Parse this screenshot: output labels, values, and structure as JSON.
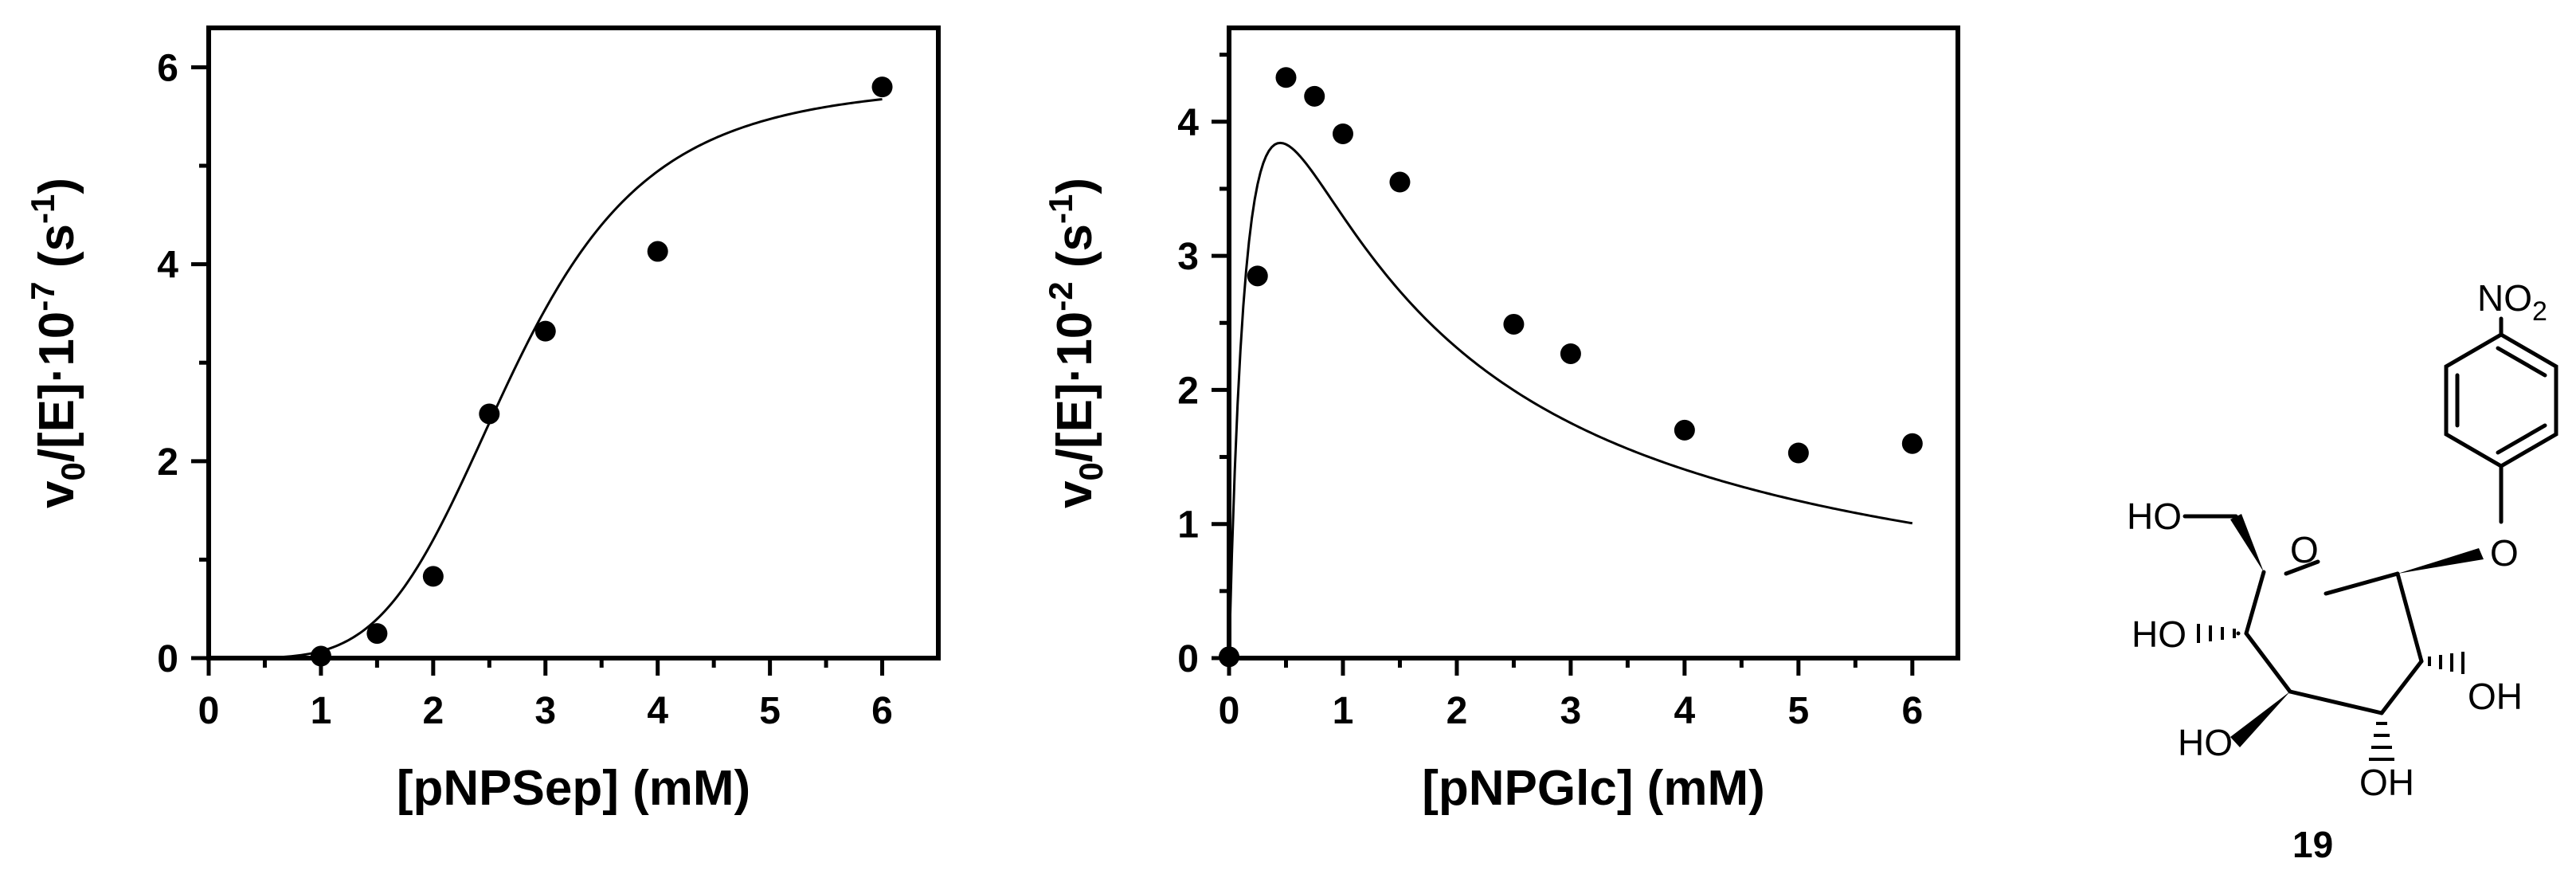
{
  "chart_data": [
    {
      "type": "scatter",
      "title": "",
      "xlabel_parts": {
        "text": "[pNPSep] (mM)"
      },
      "ylabel_parts": {
        "v": "v",
        "sub0": "0",
        "mid": "/[E]·10",
        "sup": "-7",
        "unit": " (s",
        "unitsup": "-1",
        "close": ")"
      },
      "xlim": [
        0,
        6.5
      ],
      "ylim": [
        0,
        6.4
      ],
      "xticks": [
        0,
        1,
        2,
        3,
        4,
        5,
        6
      ],
      "yticks": [
        0,
        2,
        4,
        6
      ],
      "x": [
        1,
        1.5,
        2,
        2.5,
        3,
        4,
        6
      ],
      "y": [
        0.02,
        0.25,
        0.83,
        2.48,
        3.32,
        4.13,
        5.8
      ],
      "fit": {
        "model": "hill",
        "vmax": 5.85,
        "k": 2.72,
        "n": 4.4,
        "x_range": [
          0.6,
          6
        ]
      }
    },
    {
      "type": "scatter",
      "title": "",
      "xlabel_parts": {
        "text": "[pNPGlc] (mM)"
      },
      "ylabel_parts": {
        "v": "v",
        "sub0": "0",
        "mid": "/[E]·10",
        "sup": "-2",
        "unit": " (s",
        "unitsup": "-1",
        "close": ")"
      },
      "xlim": [
        0,
        6.4
      ],
      "ylim": [
        0,
        4.7
      ],
      "xticks": [
        0,
        1,
        2,
        3,
        4,
        5,
        6
      ],
      "yticks": [
        0,
        1,
        2,
        3,
        4
      ],
      "x": [
        0,
        0.25,
        0.5,
        0.75,
        1,
        1.5,
        2.5,
        3,
        4,
        5,
        6
      ],
      "y": [
        0.01,
        2.85,
        4.33,
        4.19,
        3.91,
        3.55,
        2.49,
        2.27,
        1.7,
        1.53,
        1.6
      ],
      "fit": {
        "model": "substrate_inhibition",
        "vmax": 7.6,
        "km": 0.22,
        "ki": 0.92,
        "x_range": [
          0,
          6
        ]
      }
    }
  ],
  "structure": {
    "compound_number": "19",
    "labels": {
      "no2": "NO",
      "no2_sub": "2",
      "ring_o": "O",
      "glyco_o": "O",
      "ho_ch2": "HO",
      "ho_c2": "HO",
      "ho_c3": "HO",
      "oh_c4": "OH",
      "oh_c5": "OH"
    }
  }
}
